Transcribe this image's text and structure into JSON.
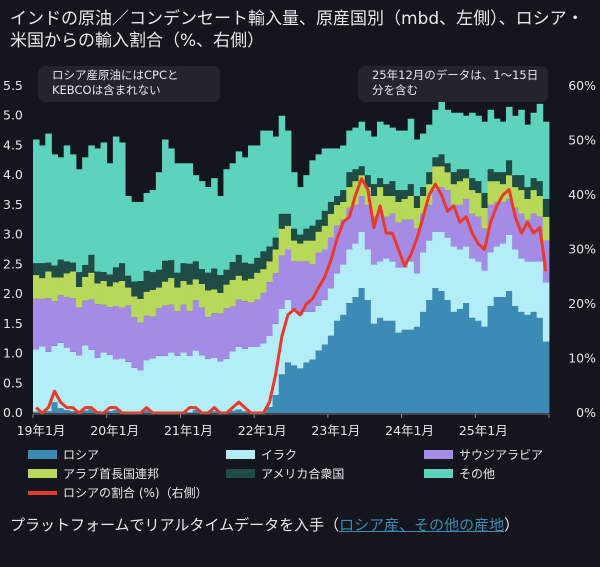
{
  "title": "インドの原油／コンデンセート輸入量、原産国別（mbd、左側）、ロシア・米国からの輸入割合（%、右側）",
  "notes": {
    "left": [
      "ロシア産原油にはCPCと",
      "KEBCOは含まれない"
    ],
    "right": [
      "25年12月のデータは、1〜15日",
      "分を含む"
    ]
  },
  "footer": {
    "text": "プラットフォームでリアルタイムデータを入手（",
    "link": "ロシア産、その他の産地",
    "close": "）"
  },
  "chart_data": {
    "type": "bar",
    "stacked": true,
    "grid": false,
    "legend_position": "bottom",
    "x_start": "2019-01",
    "x_end": "2025-12",
    "x_frequency": "monthly",
    "x_tick_labels": [
      "19年1月",
      "20年1月",
      "21年1月",
      "22年1月",
      "23年1月",
      "24年1月",
      "25年1月"
    ],
    "y_left": {
      "ylim": [
        0,
        5.5
      ],
      "ticks": [
        "0.0",
        "0.5",
        "1.0",
        "1.5",
        "2.0",
        "2.5",
        "3.0",
        "3.5",
        "4.0",
        "4.5",
        "5.0",
        "5.5"
      ]
    },
    "y_right": {
      "ylim": [
        0,
        60
      ],
      "ticks": [
        "0%",
        "10%",
        "20%",
        "30%",
        "40%",
        "50%",
        "60%"
      ]
    },
    "series": [
      {
        "name": "ロシア",
        "color": "#3b8bb5",
        "values": [
          0.02,
          0.02,
          0.03,
          0.18,
          0.08,
          0.05,
          0.03,
          0.02,
          0.04,
          0.06,
          0.03,
          0.02,
          0.03,
          0.05,
          0.02,
          0.01,
          0.01,
          0.02,
          0.04,
          0.02,
          0.01,
          0.01,
          0.02,
          0.01,
          0.02,
          0.01,
          0.05,
          0.02,
          0.01,
          0.03,
          0.02,
          0.01,
          0.04,
          0.06,
          0.03,
          0.01,
          0.01,
          0.02,
          0.1,
          0.3,
          0.65,
          0.85,
          0.8,
          0.75,
          0.85,
          0.9,
          1.05,
          1.15,
          1.3,
          1.55,
          1.65,
          1.85,
          1.95,
          2.1,
          1.9,
          1.5,
          1.6,
          1.55,
          1.55,
          1.35,
          1.4,
          1.4,
          1.45,
          1.7,
          1.9,
          2.1,
          2.05,
          1.9,
          1.7,
          1.75,
          1.85,
          1.6,
          1.55,
          1.45,
          1.8,
          1.95,
          1.95,
          2.05,
          1.8,
          1.7,
          1.65,
          1.7,
          1.6,
          1.2
        ]
      },
      {
        "name": "イラク",
        "color": "#b3eef8",
        "values": [
          1.05,
          1.1,
          1.0,
          0.95,
          1.1,
          1.05,
          1.0,
          0.95,
          1.1,
          1.0,
          0.9,
          1.0,
          0.95,
          0.85,
          0.9,
          0.85,
          0.75,
          0.7,
          0.85,
          0.9,
          0.95,
          0.95,
          1.0,
          0.95,
          1.0,
          0.95,
          1.0,
          0.95,
          0.9,
          0.9,
          0.85,
          0.9,
          1.0,
          1.05,
          1.05,
          1.1,
          1.1,
          1.15,
          1.2,
          1.2,
          1.1,
          1.05,
          0.95,
          0.9,
          0.85,
          0.8,
          0.75,
          0.75,
          0.8,
          0.8,
          0.85,
          0.9,
          0.9,
          0.95,
          0.85,
          1.0,
          0.95,
          1.05,
          1.0,
          1.1,
          1.05,
          1.15,
          0.9,
          1.0,
          1.0,
          0.95,
          1.0,
          1.05,
          1.1,
          1.0,
          0.95,
          1.0,
          1.0,
          0.95,
          0.9,
          0.85,
          0.9,
          0.95,
          0.95,
          0.9,
          0.9,
          0.85,
          0.95,
          1.0
        ]
      },
      {
        "name": "サウジアラビア",
        "color": "#a48be6",
        "values": [
          0.85,
          0.8,
          0.9,
          0.75,
          0.8,
          0.85,
          0.9,
          0.8,
          0.75,
          0.85,
          0.9,
          0.8,
          0.8,
          0.9,
          0.85,
          0.95,
          0.85,
          0.8,
          0.75,
          0.7,
          0.8,
          0.85,
          0.8,
          0.75,
          0.8,
          0.75,
          0.85,
          0.8,
          0.7,
          0.75,
          0.8,
          0.85,
          0.75,
          0.8,
          0.8,
          0.75,
          0.8,
          0.85,
          0.9,
          0.85,
          0.9,
          0.85,
          0.8,
          0.9,
          0.85,
          0.8,
          0.9,
          0.85,
          0.85,
          0.8,
          0.75,
          0.7,
          0.65,
          0.6,
          0.75,
          0.8,
          0.85,
          0.7,
          0.8,
          0.75,
          0.8,
          0.7,
          0.75,
          0.65,
          0.6,
          0.7,
          0.75,
          0.8,
          0.7,
          0.75,
          0.8,
          0.75,
          0.75,
          0.7,
          0.8,
          0.75,
          0.7,
          0.6,
          0.7,
          0.75,
          0.7,
          0.8,
          0.75,
          0.7
        ]
      },
      {
        "name": "アラブ首長国連邦",
        "color": "#b8d85a",
        "values": [
          0.4,
          0.35,
          0.45,
          0.4,
          0.3,
          0.4,
          0.45,
          0.35,
          0.4,
          0.45,
          0.35,
          0.4,
          0.35,
          0.4,
          0.45,
          0.3,
          0.35,
          0.4,
          0.4,
          0.45,
          0.35,
          0.4,
          0.45,
          0.4,
          0.4,
          0.45,
          0.35,
          0.4,
          0.45,
          0.4,
          0.35,
          0.4,
          0.45,
          0.4,
          0.35,
          0.4,
          0.45,
          0.4,
          0.35,
          0.4,
          0.45,
          0.4,
          0.35,
          0.3,
          0.35,
          0.4,
          0.35,
          0.4,
          0.4,
          0.35,
          0.3,
          0.35,
          0.4,
          0.35,
          0.3,
          0.35,
          0.4,
          0.35,
          0.3,
          0.35,
          0.35,
          0.4,
          0.35,
          0.3,
          0.35,
          0.4,
          0.35,
          0.3,
          0.35,
          0.4,
          0.35,
          0.4,
          0.4,
          0.35,
          0.4,
          0.35,
          0.3,
          0.4,
          0.35,
          0.4,
          0.35,
          0.4,
          0.35,
          0.4
        ]
      },
      {
        "name": "アメリカ合衆国",
        "color": "#1f4d45",
        "values": [
          0.2,
          0.25,
          0.15,
          0.2,
          0.3,
          0.2,
          0.15,
          0.25,
          0.2,
          0.3,
          0.2,
          0.15,
          0.2,
          0.25,
          0.3,
          0.2,
          0.25,
          0.3,
          0.35,
          0.3,
          0.3,
          0.35,
          0.3,
          0.25,
          0.3,
          0.35,
          0.3,
          0.25,
          0.3,
          0.35,
          0.3,
          0.25,
          0.3,
          0.35,
          0.3,
          0.25,
          0.25,
          0.3,
          0.25,
          0.2,
          0.25,
          0.2,
          0.2,
          0.15,
          0.2,
          0.25,
          0.2,
          0.25,
          0.2,
          0.15,
          0.2,
          0.25,
          0.2,
          0.15,
          0.2,
          0.2,
          0.15,
          0.2,
          0.25,
          0.2,
          0.15,
          0.2,
          0.2,
          0.15,
          0.2,
          0.15,
          0.2,
          0.15,
          0.2,
          0.2,
          0.15,
          0.2,
          0.2,
          0.25,
          0.2,
          0.15,
          0.2,
          0.25,
          0.2,
          0.25,
          0.2,
          0.2,
          0.25,
          0.3
        ]
      },
      {
        "name": "その他",
        "color": "#5dd3be",
        "values": [
          2.08,
          1.98,
          2.17,
          1.87,
          1.72,
          1.95,
          1.82,
          1.73,
          1.81,
          1.84,
          2.07,
          2.18,
          1.87,
          2.2,
          2.03,
          1.34,
          1.34,
          1.33,
          1.31,
          1.38,
          1.64,
          2.04,
          1.88,
          1.84,
          1.68,
          1.69,
          1.45,
          1.48,
          1.44,
          1.52,
          1.33,
          1.69,
          1.66,
          1.74,
          1.77,
          1.99,
          1.89,
          2.03,
          1.95,
          1.7,
          1.65,
          1.4,
          0.95,
          0.8,
          0.9,
          1.1,
          1.1,
          1.05,
          0.9,
          0.8,
          0.75,
          0.7,
          0.7,
          0.75,
          0.75,
          0.8,
          0.95,
          1.0,
          0.9,
          1.0,
          1.0,
          1.1,
          0.95,
          0.9,
          0.8,
          0.8,
          0.9,
          0.9,
          1.0,
          0.95,
          0.9,
          1.1,
          1.1,
          1.2,
          1.0,
          0.9,
          0.85,
          0.9,
          1.0,
          1.1,
          1.05,
          1.1,
          1.3,
          1.3
        ]
      }
    ],
    "line": {
      "name": "ロシアの割合 (%)（右側）",
      "color": "#e8392a",
      "axis": "right",
      "values": [
        1,
        0,
        1,
        4,
        2,
        1,
        1,
        0,
        1,
        1,
        0,
        0,
        1,
        1,
        0,
        0,
        0,
        0,
        1,
        0,
        0,
        0,
        0,
        0,
        0,
        1,
        1,
        0,
        0,
        1,
        0,
        0,
        1,
        2,
        1,
        0,
        0,
        0,
        2,
        7,
        14,
        18,
        19,
        18,
        20,
        21,
        23,
        25,
        28,
        32,
        35,
        36,
        40,
        43,
        41,
        34,
        38,
        33,
        33,
        30,
        27,
        29,
        32,
        36,
        40,
        42,
        40,
        37,
        38,
        35,
        36,
        33,
        31,
        30,
        35,
        38,
        40,
        41,
        36,
        33,
        35,
        33,
        34,
        26
      ]
    }
  }
}
